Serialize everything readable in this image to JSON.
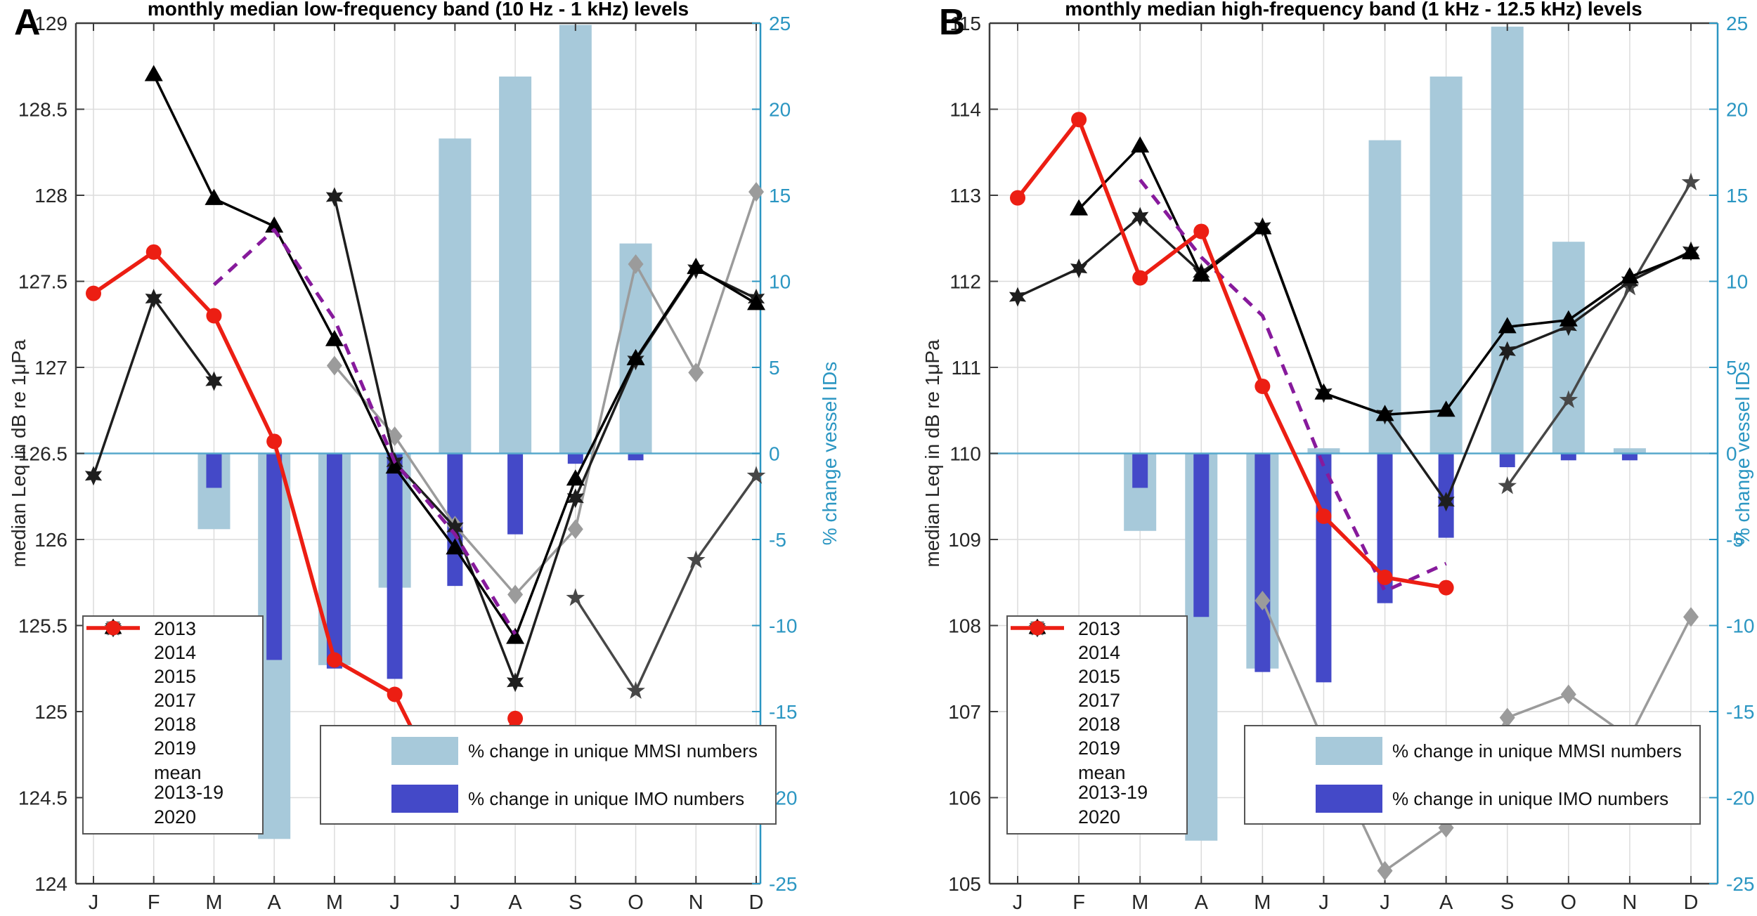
{
  "figure": {
    "panel_a_letter": "A",
    "panel_b_letter": "B"
  },
  "colors": {
    "mmsi_bar": "#a7c9da",
    "imo_bar": "#4449c8",
    "right_axis": "#2b96c2",
    "zero_line": "#57a8cc",
    "grid": "#dcdcdc",
    "spine": "#3c3c3c",
    "tick_text": "#262626",
    "red_2020": "#ec1e13",
    "purple_mean": "#871a9c"
  },
  "legend_years": [
    {
      "label": "2013",
      "color": "#c0c0c0",
      "marker": "circle",
      "dashed": false,
      "bold": false
    },
    {
      "label": "2014",
      "color": "#9b9b9b",
      "marker": "diamond",
      "dashed": false,
      "bold": false
    },
    {
      "label": "2015",
      "color": "#7f7f7f",
      "marker": "square",
      "dashed": false,
      "bold": false
    },
    {
      "label": "2017",
      "color": "#474747",
      "marker": "star5",
      "dashed": false,
      "bold": false
    },
    {
      "label": "2018",
      "color": "#1e1e1e",
      "marker": "star6",
      "dashed": false,
      "bold": false
    },
    {
      "label": "2019",
      "color": "#000000",
      "marker": "triangle",
      "dashed": false,
      "bold": false
    },
    {
      "label": "mean",
      "label2": "2013-19",
      "color": "#871a9c",
      "marker": "none",
      "dashed": true,
      "bold": false
    },
    {
      "label": "2020",
      "color": "#ec1e13",
      "marker": "circle",
      "dashed": false,
      "bold": true
    }
  ],
  "legend_bars": [
    {
      "label": "% change in unique MMSI numbers",
      "color": "#a7c9da"
    },
    {
      "label": "% change in unique IMO numbers",
      "color": "#4449c8"
    }
  ],
  "chart_data": [
    {
      "type": "line+bar",
      "panel": "A",
      "title": "monthly median low-frequency band (10 Hz - 1 kHz) levels",
      "categories": [
        "J",
        "F",
        "M",
        "A",
        "M",
        "J",
        "J",
        "A",
        "S",
        "O",
        "N",
        "D"
      ],
      "ylabel_left": "median Leq in dB re 1μPa",
      "ylabel_right": "% change vessel IDs",
      "ylim_left": [
        124,
        129
      ],
      "ytick_left_step": 0.5,
      "ylim_right": [
        -25,
        25
      ],
      "ytick_right_step": 5,
      "grid": true,
      "legend_position": [
        "lower-left-years",
        "lower-center-bars"
      ],
      "bar_series": [
        {
          "name": "% change in unique MMSI numbers",
          "color": "#a7c9da",
          "values": [
            null,
            null,
            -4.4,
            -22.4,
            -12.3,
            -7.8,
            18.3,
            21.9,
            24.9,
            12.2,
            null,
            null
          ]
        },
        {
          "name": "% change in unique IMO numbers",
          "color": "#4449c8",
          "values": [
            null,
            null,
            -2.0,
            -12.0,
            -12.5,
            -13.1,
            -7.7,
            -4.7,
            -0.6,
            -0.4,
            null,
            null
          ]
        }
      ],
      "line_series": [
        {
          "name": "2013",
          "marker": "circle",
          "color": "#c0c0c0",
          "dashed": false,
          "bold": false,
          "values": [
            null,
            null,
            null,
            null,
            null,
            null,
            null,
            null,
            null,
            null,
            null,
            null
          ]
        },
        {
          "name": "2014",
          "marker": "diamond",
          "color": "#9b9b9b",
          "dashed": false,
          "bold": false,
          "values": [
            null,
            null,
            null,
            null,
            127.01,
            126.6,
            126.08,
            125.68,
            126.06,
            127.6,
            126.97,
            128.02
          ]
        },
        {
          "name": "2015",
          "marker": "square",
          "color": "#7f7f7f",
          "dashed": false,
          "bold": false,
          "values": [
            null,
            null,
            null,
            null,
            null,
            null,
            null,
            null,
            null,
            null,
            null,
            null
          ]
        },
        {
          "name": "2017",
          "marker": "star5",
          "color": "#474747",
          "dashed": false,
          "bold": false,
          "values": [
            null,
            null,
            null,
            null,
            null,
            null,
            null,
            null,
            125.66,
            125.12,
            125.88,
            126.37
          ]
        },
        {
          "name": "2018",
          "marker": "star6",
          "color": "#1e1e1e",
          "dashed": false,
          "bold": false,
          "values": [
            126.37,
            127.4,
            126.92,
            null,
            127.99,
            126.45,
            126.07,
            125.17,
            126.24,
            127.04,
            127.57,
            127.4
          ]
        },
        {
          "name": "2019",
          "marker": "triangle",
          "color": "#000000",
          "dashed": false,
          "bold": false,
          "values": [
            null,
            128.7,
            127.98,
            127.82,
            127.16,
            126.42,
            125.95,
            125.43,
            126.35,
            127.05,
            127.58,
            127.37
          ]
        },
        {
          "name": "mean 2013-19",
          "marker": "none",
          "color": "#871a9c",
          "dashed": true,
          "bold": false,
          "values": [
            null,
            null,
            127.48,
            127.8,
            127.28,
            126.45,
            126.03,
            125.45,
            null,
            null,
            null,
            null
          ]
        },
        {
          "name": "2020",
          "marker": "circle",
          "color": "#ec1e13",
          "dashed": false,
          "bold": true,
          "values": [
            127.43,
            127.67,
            127.3,
            126.57,
            125.3,
            125.1,
            124.4,
            124.96,
            null,
            null,
            null,
            null
          ]
        }
      ]
    },
    {
      "type": "line+bar",
      "panel": "B",
      "title": "monthly median high-frequency band (1 kHz - 12.5 kHz) levels",
      "categories": [
        "J",
        "F",
        "M",
        "A",
        "M",
        "J",
        "J",
        "A",
        "S",
        "O",
        "N",
        "D"
      ],
      "ylabel_left": "median Leq in dB re 1μPa",
      "ylabel_right": "% change vessel IDs",
      "ylim_left": [
        105,
        115
      ],
      "ytick_left_step": 1,
      "ylim_right": [
        -25,
        25
      ],
      "ytick_right_step": 5,
      "grid": true,
      "legend_position": [
        "lower-left-years",
        "lower-center-bars"
      ],
      "bar_series": [
        {
          "name": "% change in unique MMSI numbers",
          "color": "#a7c9da",
          "values": [
            null,
            null,
            -4.5,
            -22.5,
            -12.5,
            0.3,
            18.2,
            21.9,
            24.8,
            12.3,
            0.3,
            null
          ]
        },
        {
          "name": "% change in unique IMO numbers",
          "color": "#4449c8",
          "values": [
            null,
            null,
            -2.0,
            -9.5,
            -12.7,
            -13.3,
            -8.7,
            -4.9,
            -0.8,
            -0.4,
            -0.4,
            null
          ]
        }
      ],
      "line_series": [
        {
          "name": "2013",
          "marker": "circle",
          "color": "#c0c0c0",
          "dashed": false,
          "bold": false,
          "values": [
            null,
            null,
            null,
            null,
            null,
            null,
            null,
            null,
            null,
            null,
            null,
            null
          ]
        },
        {
          "name": "2014",
          "marker": "diamond",
          "color": "#9b9b9b",
          "dashed": false,
          "bold": false,
          "values": [
            null,
            null,
            null,
            null,
            108.29,
            106.65,
            105.15,
            105.65,
            106.93,
            107.2,
            106.7,
            108.1
          ]
        },
        {
          "name": "2015",
          "marker": "square",
          "color": "#7f7f7f",
          "dashed": false,
          "bold": false,
          "values": [
            null,
            null,
            null,
            null,
            null,
            null,
            null,
            null,
            null,
            null,
            null,
            null
          ]
        },
        {
          "name": "2017",
          "marker": "star5",
          "color": "#474747",
          "dashed": false,
          "bold": false,
          "values": [
            null,
            null,
            null,
            null,
            null,
            null,
            null,
            null,
            109.62,
            110.62,
            111.93,
            113.15
          ]
        },
        {
          "name": "2018",
          "marker": "star6",
          "color": "#1e1e1e",
          "dashed": false,
          "bold": false,
          "values": [
            111.82,
            112.15,
            112.75,
            112.1,
            112.63,
            110.7,
            110.45,
            109.44,
            111.19,
            111.48,
            112.0,
            112.35
          ]
        },
        {
          "name": "2019",
          "marker": "triangle",
          "color": "#000000",
          "dashed": false,
          "bold": false,
          "values": [
            null,
            112.84,
            113.57,
            112.07,
            112.62,
            110.7,
            110.45,
            110.5,
            111.47,
            111.55,
            112.05,
            112.33
          ]
        },
        {
          "name": "mean 2013-19",
          "marker": "none",
          "color": "#871a9c",
          "dashed": true,
          "bold": false,
          "values": [
            null,
            null,
            113.18,
            112.28,
            111.6,
            109.85,
            108.4,
            108.72,
            null,
            null,
            null,
            null
          ]
        },
        {
          "name": "2020",
          "marker": "circle",
          "color": "#ec1e13",
          "dashed": false,
          "bold": true,
          "values": [
            112.97,
            113.88,
            112.04,
            112.58,
            110.78,
            109.27,
            108.56,
            108.44,
            null,
            null,
            null,
            null
          ]
        }
      ]
    }
  ]
}
